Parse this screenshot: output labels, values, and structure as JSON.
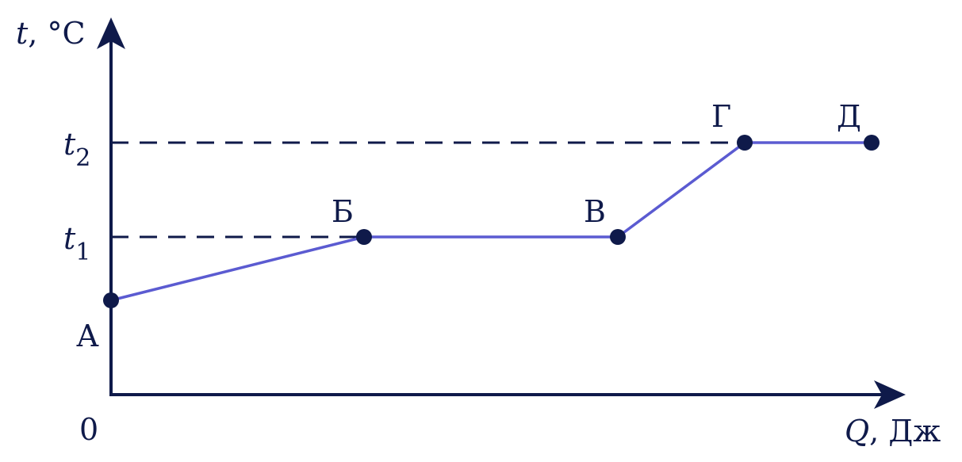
{
  "y_axis": {
    "variable": "t",
    "unit": ", °C"
  },
  "x_axis": {
    "variable": "Q",
    "unit": ", Дж"
  },
  "origin": "0",
  "levels": [
    {
      "symbol": "t",
      "index": "2"
    },
    {
      "symbol": "t",
      "index": "1"
    }
  ],
  "points": [
    "А",
    "Б",
    "В",
    "Г",
    "Д"
  ]
}
